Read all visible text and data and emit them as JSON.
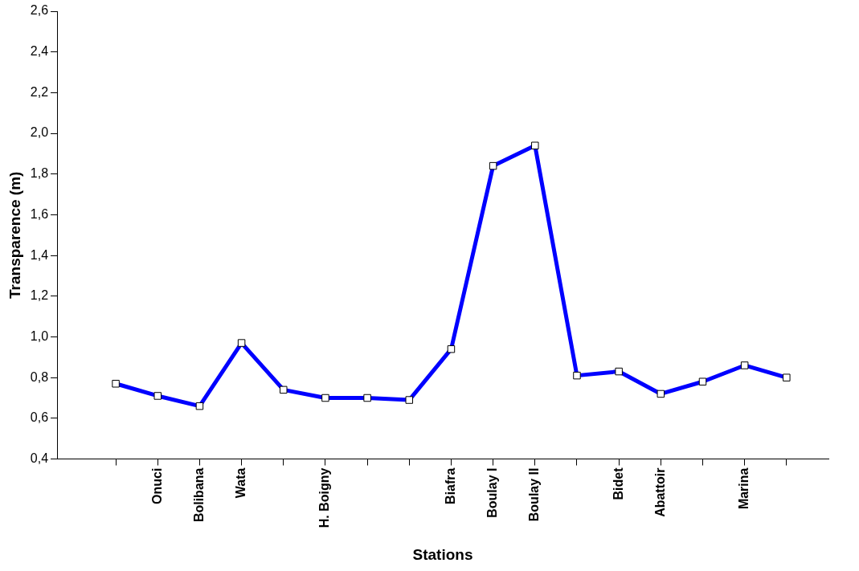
{
  "chart_data": {
    "type": "line",
    "xlabel": "Stations",
    "ylabel": "Transparence (m)",
    "categories": [
      null,
      "Onuci",
      "Bolibana",
      "Wata",
      null,
      "H. Boigny",
      null,
      null,
      "Biafra",
      "Boulay I",
      "Boulay II",
      null,
      "Bidet",
      "Abattoir",
      null,
      "Marina",
      null
    ],
    "series": [
      {
        "color": "#0000ff",
        "values": [
          0.77,
          0.71,
          0.66,
          0.97,
          0.74,
          0.7,
          0.7,
          0.69,
          0.94,
          1.84,
          1.94,
          0.81,
          0.83,
          0.72,
          0.78,
          0.86,
          0.8
        ]
      }
    ],
    "ylim": [
      0.4,
      2.6
    ],
    "yticks": [
      {
        "value": 0.4,
        "label": "0,4"
      },
      {
        "value": 0.6,
        "label": "0,6"
      },
      {
        "value": 0.8,
        "label": "0,8"
      },
      {
        "value": 1.0,
        "label": "1,0"
      },
      {
        "value": 1.2,
        "label": "1,2"
      },
      {
        "value": 1.4,
        "label": "1,4"
      },
      {
        "value": 1.6,
        "label": "1,6"
      },
      {
        "value": 1.8,
        "label": "1,8"
      },
      {
        "value": 2.0,
        "label": "2,0"
      },
      {
        "value": 2.2,
        "label": "2,2"
      },
      {
        "value": 2.4,
        "label": "2,4"
      },
      {
        "value": 2.6,
        "label": "2,6"
      }
    ],
    "grid": false,
    "legend": false,
    "marker": "square",
    "line_style": "solid"
  }
}
